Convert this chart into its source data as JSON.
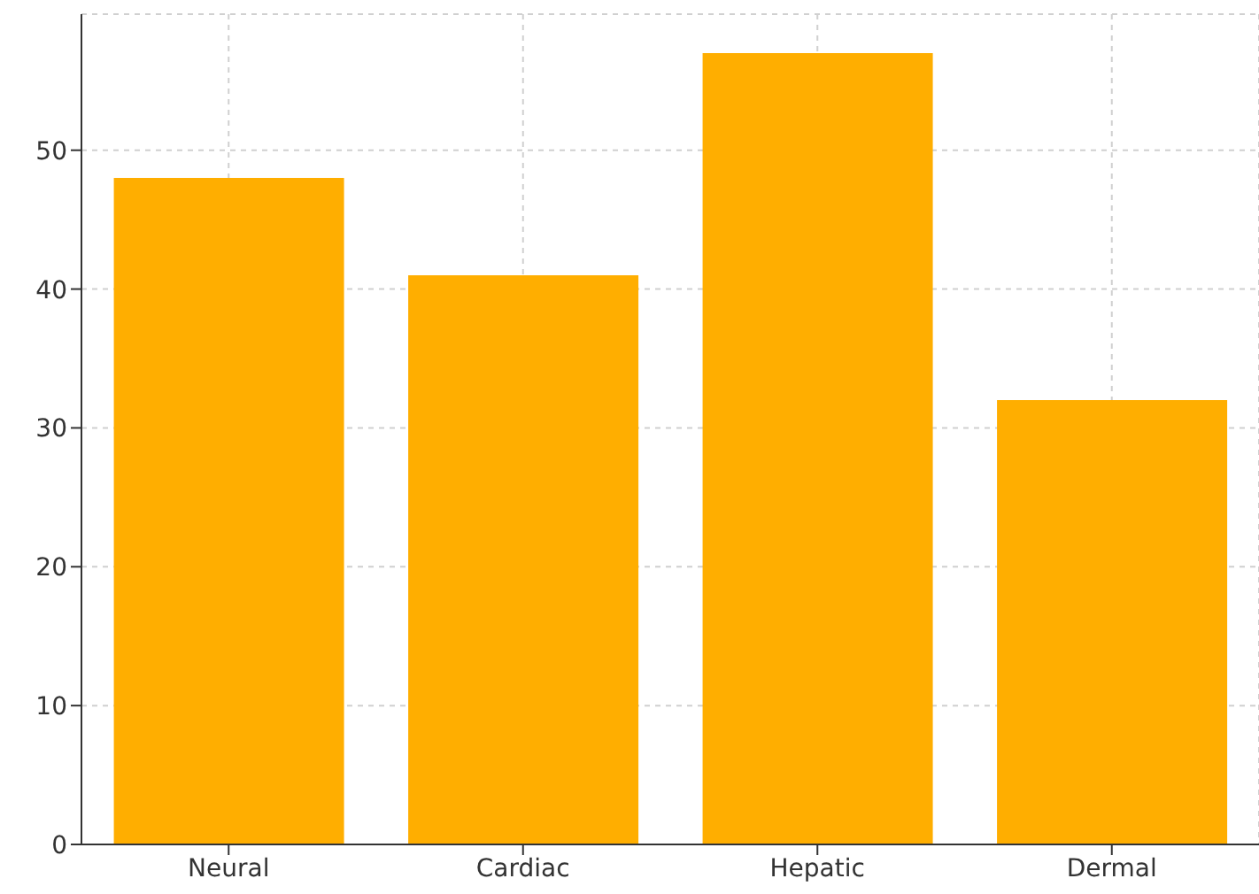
{
  "chart_data": {
    "type": "bar",
    "categories": [
      "Neural",
      "Cardiac",
      "Hepatic",
      "Dermal"
    ],
    "values": [
      48,
      41,
      57,
      32
    ],
    "color": "#ffae00",
    "ylim": [
      0,
      59.8
    ],
    "yticks": [
      0,
      10,
      20,
      30,
      40,
      50
    ],
    "grid": true
  }
}
